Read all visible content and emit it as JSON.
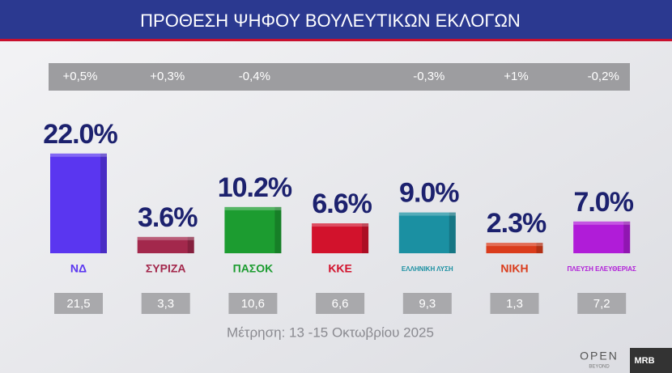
{
  "chart_data": {
    "type": "bar",
    "title": "ΠΡΟΘΕΣΗ ΨΗΦΟΥ ΒΟΥΛΕΥΤΙΚΩΝ ΕΚΛΟΓΩΝ",
    "categories": [
      "ΝΔ",
      "ΣΥΡΙΖΑ",
      "ΠΑΣΟΚ",
      "ΚΚΕ",
      "ΕΛΛΗΝΙΚΗ ΛΥΣΗ",
      "ΝΙΚΗ",
      "ΠΛΕΥΣΗ ΕΛΕΥΘΕΡΙΑΣ"
    ],
    "values": [
      22.0,
      3.6,
      10.2,
      6.6,
      9.0,
      2.3,
      7.0
    ],
    "value_labels": [
      "22.0%",
      "3.6%",
      "10.2%",
      "6.6%",
      "9.0%",
      "2.3%",
      "7.0%"
    ],
    "colors": [
      "#5a36f0",
      "#a3284c",
      "#1c9c30",
      "#d2122c",
      "#1b90a2",
      "#da3c1c",
      "#b01cd8"
    ],
    "changes": {
      "values": [
        0.5,
        0.3,
        -0.4,
        null,
        -0.3,
        1,
        -0.2
      ],
      "value_labels": [
        "+0,5%",
        "+0,3%",
        "-0,4%",
        null,
        "-0,3%",
        "+1%",
        "-0,2%"
      ]
    },
    "previous": {
      "values": [
        21.5,
        3.3,
        10.6,
        6.6,
        9.3,
        1.3,
        7.2
      ],
      "value_labels": [
        "21,5",
        "3,3",
        "10,6",
        "6,6",
        "9,3",
        "1,3",
        "7,2"
      ]
    },
    "note": "Μέτρηση: 13 -15 Οκτωβρίου 2025",
    "branding": [
      "OPEN",
      "BEYOND",
      "MRB"
    ]
  }
}
